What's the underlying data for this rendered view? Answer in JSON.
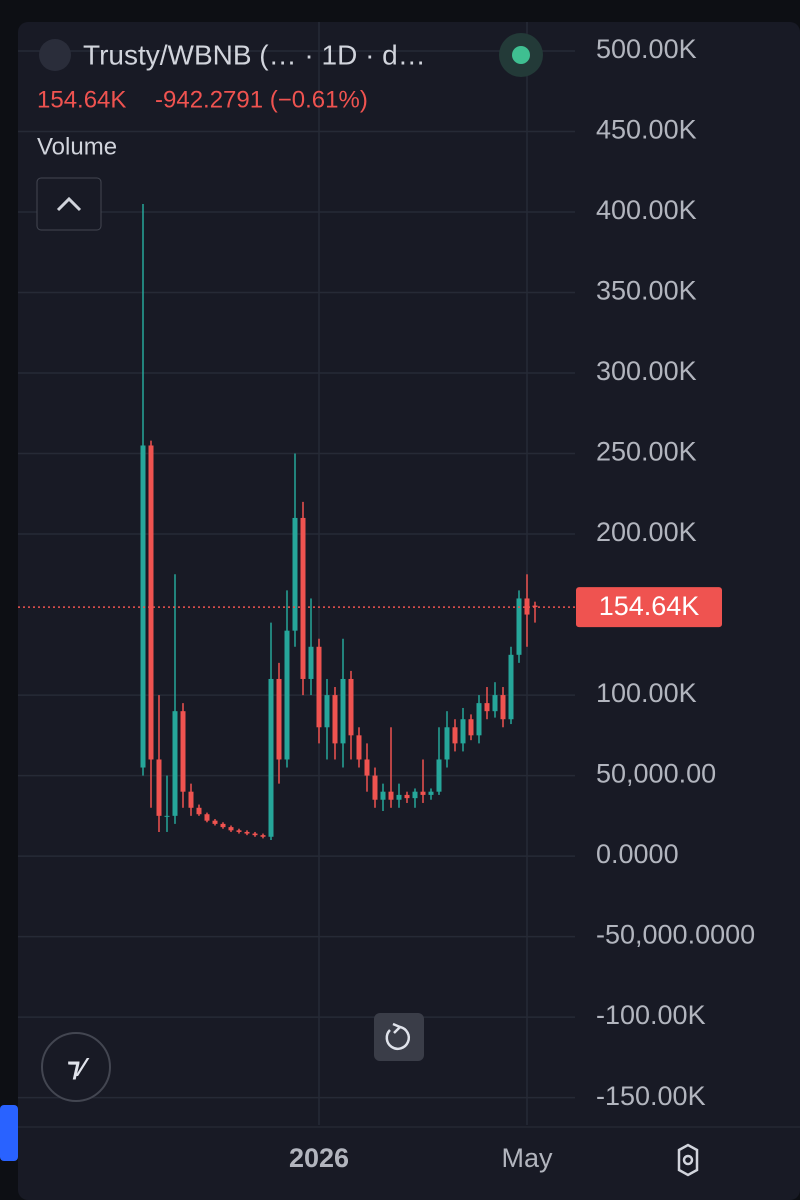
{
  "chart_data": {
    "type": "candlestick",
    "title": "Trusty/WBNB (… · 1D · d…",
    "change": "-942.2791 (−0.61%)",
    "pane_label": "Volume",
    "last_price": {
      "value": 154640,
      "label": "154.64K"
    },
    "up_color": "#26a69a",
    "down_color": "#ef5350",
    "grid": true,
    "ylim": [
      -167000,
      518000
    ],
    "yticks": [
      {
        "value": 500000,
        "label": "500.00K"
      },
      {
        "value": 450000,
        "label": "450.00K"
      },
      {
        "value": 400000,
        "label": "400.00K"
      },
      {
        "value": 350000,
        "label": "350.00K"
      },
      {
        "value": 300000,
        "label": "300.00K"
      },
      {
        "value": 250000,
        "label": "250.00K"
      },
      {
        "value": 200000,
        "label": "200.00K"
      },
      {
        "value": 100000,
        "label": "100.00K"
      },
      {
        "value": 50000,
        "label": "50,000.00"
      },
      {
        "value": 0,
        "label": "0.0000"
      },
      {
        "value": -50000,
        "label": "-50,000.0000"
      },
      {
        "value": -100000,
        "label": "-100.00K"
      },
      {
        "value": -150000,
        "label": "-150.00K"
      }
    ],
    "categories": [
      null,
      null,
      null,
      null,
      null,
      null,
      null,
      null,
      null,
      null,
      null,
      null,
      null,
      null,
      null,
      null,
      null,
      null,
      null,
      null,
      null,
      null,
      "2026",
      null,
      null,
      null,
      null,
      null,
      null,
      null,
      null,
      null,
      null,
      null,
      null,
      null,
      null,
      null,
      null,
      null,
      null,
      null,
      null,
      null,
      null,
      null,
      null,
      null,
      "May",
      null
    ],
    "open": [
      55000,
      255000,
      60000,
      25000,
      25000,
      90000,
      40000,
      30000,
      26000,
      22000,
      20000,
      18000,
      16000,
      15000,
      14000,
      13000,
      12000,
      110000,
      60000,
      140000,
      210000,
      110000,
      130000,
      80000,
      100000,
      70000,
      110000,
      75000,
      60000,
      50000,
      35000,
      40000,
      35000,
      38000,
      36000,
      40000,
      38000,
      40000,
      60000,
      80000,
      70000,
      85000,
      75000,
      95000,
      90000,
      100000,
      85000,
      125000,
      160000,
      155580
    ],
    "high": [
      405000,
      258000,
      100000,
      50000,
      175000,
      95000,
      45000,
      32000,
      27000,
      23000,
      21000,
      19000,
      17000,
      16000,
      15000,
      14000,
      145000,
      120000,
      165000,
      250000,
      220000,
      160000,
      135000,
      110000,
      105000,
      135000,
      115000,
      80000,
      70000,
      55000,
      45000,
      80000,
      45000,
      40000,
      42000,
      60000,
      42000,
      80000,
      90000,
      85000,
      92000,
      88000,
      100000,
      105000,
      108000,
      105000,
      130000,
      165000,
      175000,
      158000
    ],
    "low": [
      50000,
      30000,
      15000,
      15000,
      20000,
      30000,
      25000,
      25000,
      21000,
      19000,
      17000,
      15000,
      14000,
      13000,
      12000,
      11000,
      10000,
      45000,
      55000,
      130000,
      100000,
      100000,
      70000,
      60000,
      60000,
      55000,
      60000,
      55000,
      40000,
      30000,
      28000,
      30000,
      30000,
      33000,
      30000,
      33000,
      35000,
      38000,
      55000,
      65000,
      65000,
      72000,
      70000,
      85000,
      86000,
      80000,
      82000,
      120000,
      130000,
      145000
    ],
    "close": [
      255000,
      60000,
      25000,
      25000,
      90000,
      40000,
      30000,
      26000,
      22000,
      20000,
      18000,
      16000,
      15000,
      14000,
      13000,
      12000,
      110000,
      60000,
      140000,
      210000,
      110000,
      130000,
      80000,
      100000,
      70000,
      110000,
      75000,
      60000,
      50000,
      35000,
      40000,
      35000,
      38000,
      36000,
      40000,
      38000,
      40000,
      60000,
      80000,
      70000,
      85000,
      75000,
      95000,
      90000,
      100000,
      85000,
      125000,
      160000,
      150000,
      154640
    ]
  }
}
